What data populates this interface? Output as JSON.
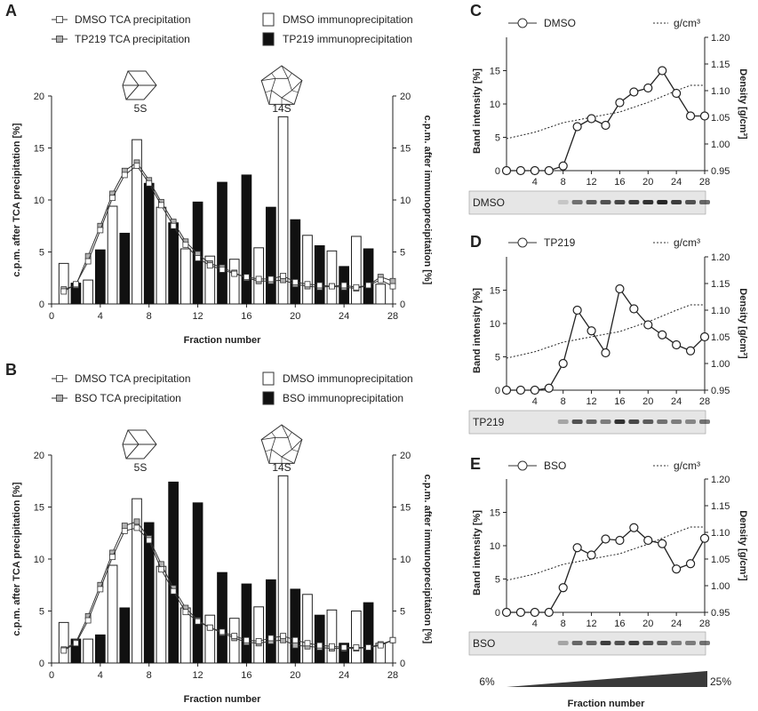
{
  "colors": {
    "ink": "#1a1a1a",
    "tca_gray": "#b0b0b0",
    "bar_black": "#111111",
    "band_bg": "#e6e6e6"
  },
  "left": {
    "fraction_axis_title": "Fraction number",
    "left_axis_title": "c.p.m. after TCA precipitation [%]",
    "right_axis_title": "c.p.m. after immunoprecipitation [%]",
    "complex_labels": [
      "5S",
      "14S"
    ]
  },
  "right": {
    "band_axis_title": "Band intensity [%]",
    "density_axis_title": "Density [g/cm³]",
    "density_legend": "g/cm³",
    "fraction_axis_title": "Fraction number",
    "gradient_low": "6%",
    "gradient_high": "25%"
  },
  "chart_data": [
    {
      "panel": "A",
      "type": "bar",
      "legend_position": "top",
      "legend": {
        "tca_ctrl": "DMSO TCA precipitation",
        "tca_treat": "TP219 TCA precipitation",
        "ip_ctrl": "DMSO immunoprecipitation",
        "ip_treat": "TP219 immunoprecipitation"
      },
      "xlim": [
        0,
        28
      ],
      "ylim": [
        0,
        20
      ],
      "xticks": [
        0,
        4,
        8,
        12,
        16,
        20,
        24,
        28
      ],
      "yticks": [
        0,
        5,
        10,
        15,
        20
      ],
      "bars_ctrl": {
        "x": [
          1,
          3,
          5,
          7,
          9,
          11,
          13,
          15,
          17,
          19,
          21,
          23,
          25,
          27
        ],
        "values": [
          3.9,
          2.3,
          9.4,
          15.8,
          9.3,
          5.3,
          4.6,
          4.3,
          5.4,
          18.0,
          6.6,
          5.1,
          6.5,
          1.9
        ]
      },
      "bars_treat": {
        "x": [
          2,
          4,
          6,
          8,
          10,
          12,
          14,
          16,
          18,
          20,
          22,
          24,
          26
        ],
        "values": [
          2.0,
          5.2,
          6.8,
          11.6,
          7.8,
          9.8,
          11.7,
          12.4,
          9.3,
          8.1,
          5.6,
          3.6,
          5.3
        ]
      },
      "line_ctrl": {
        "x": [
          1,
          2,
          3,
          4,
          5,
          6,
          7,
          8,
          9,
          10,
          11,
          12,
          13,
          14,
          15,
          16,
          17,
          18,
          19,
          20,
          21,
          22,
          23,
          24,
          25,
          26,
          27,
          28
        ],
        "values": [
          1.2,
          1.9,
          4.1,
          7.1,
          10.2,
          12.4,
          13.3,
          11.6,
          9.5,
          7.5,
          5.7,
          4.4,
          3.7,
          3.3,
          2.9,
          2.6,
          2.4,
          2.4,
          2.7,
          2.1,
          1.9,
          1.8,
          1.7,
          1.8,
          1.6,
          1.8,
          2.3,
          1.7
        ]
      },
      "line_treat": {
        "x": [
          1,
          2,
          3,
          4,
          5,
          6,
          7,
          8,
          9,
          10,
          11,
          12,
          13,
          14,
          15,
          16,
          17,
          18,
          19,
          20,
          21,
          22,
          23,
          24,
          25,
          26,
          27,
          28
        ],
        "values": [
          1.4,
          1.8,
          4.6,
          7.5,
          10.6,
          12.8,
          13.6,
          11.9,
          9.8,
          7.9,
          6.0,
          4.8,
          3.9,
          3.5,
          3.0,
          2.5,
          2.2,
          2.2,
          2.3,
          1.9,
          1.7,
          1.6,
          1.7,
          1.6,
          1.5,
          1.8,
          2.6,
          2.2
        ]
      }
    },
    {
      "panel": "B",
      "type": "bar",
      "legend_position": "top",
      "legend": {
        "tca_ctrl": "DMSO TCA precipitation",
        "tca_treat": "BSO TCA precipitation",
        "ip_ctrl": "DMSO immunoprecipitation",
        "ip_treat": "BSO immunoprecipitation"
      },
      "xlim": [
        0,
        28
      ],
      "ylim": [
        0,
        20
      ],
      "xticks": [
        0,
        4,
        8,
        12,
        16,
        20,
        24,
        28
      ],
      "yticks": [
        0,
        5,
        10,
        15,
        20
      ],
      "bars_ctrl": {
        "x": [
          1,
          3,
          5,
          7,
          9,
          11,
          13,
          15,
          17,
          19,
          21,
          23,
          25,
          27
        ],
        "values": [
          3.9,
          2.3,
          9.4,
          15.8,
          9.3,
          5.3,
          4.6,
          4.3,
          5.4,
          18.0,
          6.6,
          5.1,
          5.0,
          1.9
        ]
      },
      "bars_treat": {
        "x": [
          2,
          4,
          6,
          8,
          10,
          12,
          14,
          16,
          18,
          20,
          22,
          24,
          26
        ],
        "values": [
          2.3,
          2.7,
          5.3,
          13.5,
          17.4,
          15.4,
          8.7,
          7.6,
          8.0,
          7.1,
          4.6,
          1.9,
          5.8
        ]
      },
      "line_ctrl": {
        "x": [
          1,
          2,
          3,
          4,
          5,
          6,
          7,
          8,
          9,
          10,
          11,
          12,
          13,
          14,
          15,
          16,
          17,
          18,
          19,
          20,
          21,
          22,
          23,
          24,
          25,
          26,
          27,
          28
        ],
        "values": [
          1.2,
          1.9,
          4.1,
          7.1,
          10.2,
          12.7,
          13.0,
          11.8,
          9.0,
          6.9,
          4.9,
          4.0,
          3.4,
          3.0,
          2.6,
          2.2,
          2.1,
          2.4,
          2.6,
          2.2,
          1.9,
          1.7,
          1.6,
          1.5,
          1.5,
          1.5,
          1.7,
          2.2
        ]
      },
      "line_treat": {
        "x": [
          1,
          2,
          3,
          4,
          5,
          6,
          7,
          8,
          9,
          10,
          11,
          12,
          13,
          14,
          15,
          16,
          17,
          18,
          19,
          20,
          21,
          22,
          23,
          24,
          25,
          26,
          27,
          28
        ],
        "values": [
          1.3,
          2.0,
          4.5,
          7.5,
          10.6,
          13.2,
          13.6,
          12.0,
          9.5,
          7.2,
          5.3,
          4.1,
          3.4,
          2.9,
          2.4,
          2.0,
          1.9,
          2.1,
          2.2,
          1.7,
          1.6,
          1.5,
          1.4,
          1.4,
          1.4,
          1.5,
          1.8,
          2.2
        ]
      }
    },
    {
      "panel": "C",
      "type": "line",
      "legend_position": "top",
      "series_name": "DMSO",
      "blot_label": "DMSO",
      "xlim": [
        0,
        28
      ],
      "ylim": [
        0,
        20
      ],
      "y2lim": [
        0.95,
        1.2
      ],
      "xticks": [
        4,
        8,
        12,
        16,
        20,
        24,
        28
      ],
      "yticks": [
        0,
        5,
        10,
        15
      ],
      "y2ticks": [
        0.95,
        1.0,
        1.05,
        1.1,
        1.15,
        1.2
      ],
      "x": [
        0,
        2,
        4,
        6,
        8,
        10,
        12,
        14,
        16,
        18,
        20,
        22,
        24,
        26,
        28
      ],
      "values": [
        0,
        0,
        0,
        0,
        0.7,
        6.6,
        7.8,
        6.8,
        10.2,
        11.8,
        12.4,
        15.0,
        11.6,
        8.2,
        8.2
      ],
      "density_x": [
        0,
        4,
        8,
        12,
        16,
        20,
        24,
        26,
        28
      ],
      "density": [
        1.01,
        1.022,
        1.04,
        1.05,
        1.06,
        1.078,
        1.1,
        1.11,
        1.11
      ],
      "bands": [
        0,
        0,
        0,
        0,
        0.15,
        0.55,
        0.65,
        0.7,
        0.75,
        0.8,
        0.85,
        0.9,
        0.8,
        0.7,
        0.6
      ]
    },
    {
      "panel": "D",
      "type": "line",
      "legend_position": "top",
      "series_name": "TP219",
      "blot_label": "TP219",
      "xlim": [
        0,
        28
      ],
      "ylim": [
        0,
        20
      ],
      "y2lim": [
        0.95,
        1.2
      ],
      "xticks": [
        4,
        8,
        12,
        16,
        20,
        24,
        28
      ],
      "yticks": [
        0,
        5,
        10,
        15
      ],
      "y2ticks": [
        0.95,
        1.0,
        1.05,
        1.1,
        1.15,
        1.2
      ],
      "x": [
        0,
        2,
        4,
        6,
        8,
        10,
        12,
        14,
        16,
        18,
        20,
        22,
        24,
        26,
        28
      ],
      "values": [
        0,
        0,
        0,
        0.3,
        4.0,
        12.0,
        8.9,
        5.6,
        15.2,
        12.2,
        9.8,
        8.3,
        6.8,
        5.9,
        8.0
      ],
      "density_x": [
        0,
        4,
        8,
        12,
        16,
        20,
        24,
        26,
        28
      ],
      "density": [
        1.01,
        1.022,
        1.04,
        1.05,
        1.06,
        1.078,
        1.1,
        1.11,
        1.11
      ],
      "bands": [
        0,
        0,
        0,
        0,
        0.3,
        0.7,
        0.6,
        0.5,
        0.85,
        0.75,
        0.65,
        0.55,
        0.5,
        0.45,
        0.55
      ]
    },
    {
      "panel": "E",
      "type": "line",
      "legend_position": "top",
      "series_name": "BSO",
      "blot_label": "BSO",
      "xlim": [
        0,
        28
      ],
      "ylim": [
        0,
        20
      ],
      "y2lim": [
        0.95,
        1.2
      ],
      "xticks": [
        4,
        8,
        12,
        16,
        20,
        24,
        28
      ],
      "yticks": [
        0,
        5,
        10,
        15
      ],
      "y2ticks": [
        0.95,
        1.0,
        1.05,
        1.1,
        1.15,
        1.2
      ],
      "x": [
        0,
        2,
        4,
        6,
        8,
        10,
        12,
        14,
        16,
        18,
        20,
        22,
        24,
        26,
        28
      ],
      "values": [
        0,
        0,
        0,
        0,
        3.7,
        9.7,
        8.6,
        11.0,
        10.8,
        12.7,
        10.8,
        10.3,
        6.5,
        7.3,
        11.1
      ],
      "density_x": [
        0,
        4,
        8,
        12,
        16,
        20,
        24,
        26,
        28
      ],
      "density": [
        1.01,
        1.022,
        1.04,
        1.05,
        1.06,
        1.078,
        1.1,
        1.11,
        1.11
      ],
      "bands": [
        0,
        0,
        0,
        0,
        0.3,
        0.6,
        0.6,
        0.8,
        0.7,
        0.8,
        0.7,
        0.65,
        0.5,
        0.5,
        0.55
      ]
    }
  ]
}
